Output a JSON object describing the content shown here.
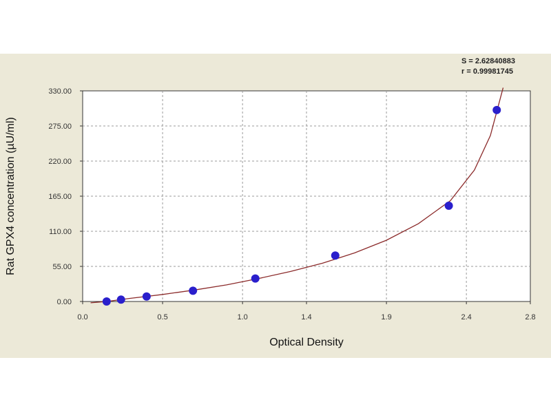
{
  "chart_data": {
    "type": "scatter",
    "xlabel": "Optical Density",
    "ylabel": "Rat GPX4 concentration (µU/ml)",
    "xlim": [
      0.0,
      2.8
    ],
    "ylim": [
      0.0,
      330.0
    ],
    "xticks": [
      0.0,
      0.5,
      1.0,
      1.4,
      1.9,
      2.4,
      2.8
    ],
    "xtick_labels": [
      "0.0",
      "0.5",
      "1.0",
      "1.4",
      "1.9",
      "2.4",
      "2.8"
    ],
    "yticks": [
      0,
      55,
      110,
      165,
      220,
      275,
      330
    ],
    "ytick_labels": [
      "0.00",
      "55.00",
      "110.00",
      "165.00",
      "220.00",
      "275.00",
      "330.00"
    ],
    "grid": true,
    "stats": [
      "S = 2.62840883",
      "r = 0.99981745"
    ],
    "series": [
      {
        "kind": "points",
        "color": "#2a1fcc",
        "x": [
          0.15,
          0.24,
          0.4,
          0.69,
          1.08,
          1.58,
          2.29,
          2.59
        ],
        "y": [
          0.0,
          2.9,
          7.8,
          16.8,
          36.0,
          72.0,
          150.0,
          300.0
        ]
      },
      {
        "kind": "fit-curve",
        "color": "#8b2a2a",
        "x": [
          0.05,
          0.15,
          0.3,
          0.5,
          0.7,
          0.9,
          1.1,
          1.3,
          1.5,
          1.7,
          1.9,
          2.1,
          2.3,
          2.45,
          2.55,
          2.63
        ],
        "y": [
          -2,
          0,
          5,
          11,
          18,
          26,
          36,
          47,
          60,
          76,
          96,
          122,
          158,
          206,
          260,
          335
        ]
      }
    ]
  }
}
